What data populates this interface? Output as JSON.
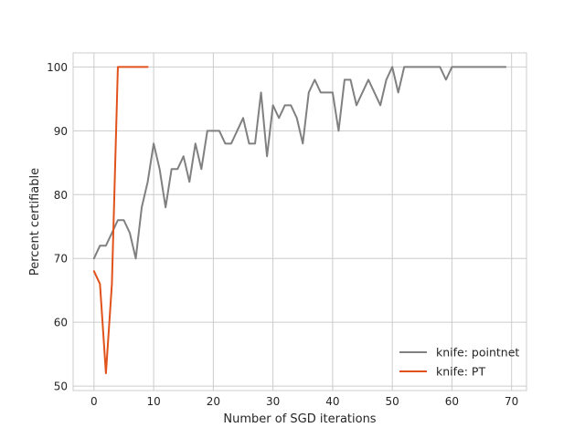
{
  "chart_data": {
    "type": "line",
    "title": "",
    "xlabel": "Number of SGD iterations",
    "ylabel": "Percent certifiable",
    "xlim": [
      -3.5,
      72.5
    ],
    "ylim": [
      49.3,
      102.2
    ],
    "xticks": [
      0,
      10,
      20,
      30,
      40,
      50,
      60,
      70
    ],
    "yticks": [
      50,
      60,
      70,
      80,
      90,
      100
    ],
    "grid": true,
    "legend_position": "lower-right",
    "series": [
      {
        "name": "knife: pointnet",
        "color": "#808080",
        "x": [
          0,
          1,
          2,
          3,
          4,
          5,
          6,
          7,
          8,
          9,
          10,
          11,
          12,
          13,
          14,
          15,
          16,
          17,
          18,
          19,
          20,
          21,
          22,
          23,
          24,
          25,
          26,
          27,
          28,
          29,
          30,
          31,
          32,
          33,
          34,
          35,
          36,
          37,
          38,
          39,
          40,
          41,
          42,
          43,
          44,
          45,
          46,
          47,
          48,
          49,
          50,
          51,
          52,
          53,
          54,
          55,
          56,
          57,
          58,
          59,
          60,
          61,
          62,
          63,
          64,
          65,
          66,
          67,
          68,
          69
        ],
        "y": [
          70,
          72,
          72,
          74,
          76,
          76,
          74,
          70,
          78,
          82,
          88,
          84,
          78,
          84,
          84,
          86,
          82,
          88,
          84,
          90,
          90,
          90,
          88,
          88,
          90,
          92,
          88,
          88,
          96,
          86,
          94,
          92,
          94,
          94,
          92,
          88,
          96,
          98,
          96,
          96,
          96,
          90,
          98,
          98,
          94,
          96,
          98,
          96,
          94,
          98,
          100,
          96,
          100,
          100,
          100,
          100,
          100,
          100,
          100,
          98,
          100,
          100,
          100,
          100,
          100,
          100,
          100,
          100,
          100,
          100
        ]
      },
      {
        "name": "knife: PT",
        "color": "#e0521a",
        "x": [
          0,
          1,
          2,
          3,
          4,
          5,
          6,
          7,
          8,
          9
        ],
        "y": [
          68,
          66,
          52,
          66,
          100,
          100,
          100,
          100,
          100,
          100
        ]
      }
    ]
  }
}
